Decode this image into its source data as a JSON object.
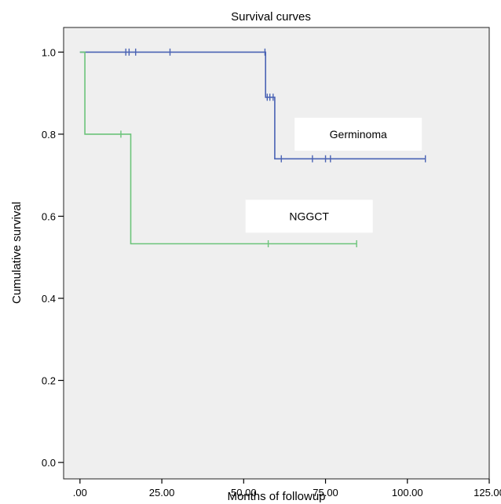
{
  "chart_data": {
    "type": "line",
    "title": "Survival curves",
    "xlabel": "Months of followup",
    "ylabel": "Cumulative survival",
    "xlim": [
      -5,
      125
    ],
    "ylim": [
      -0.04,
      1.06
    ],
    "x_ticks": [
      0,
      25,
      50,
      75,
      100,
      125
    ],
    "x_tick_labels": [
      ".00",
      "25.00",
      "50.00",
      "75.00",
      "100.00",
      "125.00"
    ],
    "y_ticks": [
      0,
      0.2,
      0.4,
      0.6,
      0.8,
      1.0
    ],
    "y_tick_labels": [
      "0.0",
      "0.2",
      "0.4",
      "0.6",
      "0.8",
      "1.0"
    ],
    "grid": false,
    "plot_background": "#efefef",
    "series": [
      {
        "name": "Germinoma",
        "color": "#4a63b4",
        "steps": [
          [
            0,
            1.0
          ],
          [
            56.7,
            1.0
          ],
          [
            56.7,
            0.89
          ],
          [
            59.5,
            0.89
          ],
          [
            59.5,
            0.74
          ],
          [
            105.5,
            0.74
          ]
        ],
        "censored": [
          [
            14,
            1.0
          ],
          [
            15,
            1.0
          ],
          [
            17,
            1.0
          ],
          [
            27.5,
            1.0
          ],
          [
            56.5,
            1.0
          ],
          [
            57.2,
            0.89
          ],
          [
            58,
            0.89
          ],
          [
            59,
            0.89
          ],
          [
            61.5,
            0.74
          ],
          [
            71,
            0.74
          ],
          [
            75,
            0.74
          ],
          [
            76.5,
            0.74
          ],
          [
            105.5,
            0.74
          ]
        ]
      },
      {
        "name": "NGGCT",
        "color": "#6cc47a",
        "steps": [
          [
            0,
            1.0
          ],
          [
            1.5,
            1.0
          ],
          [
            1.5,
            0.8
          ],
          [
            15.5,
            0.8
          ],
          [
            15.5,
            0.533
          ],
          [
            84.5,
            0.533
          ]
        ],
        "censored": [
          [
            12.5,
            0.8
          ],
          [
            57.5,
            0.533
          ],
          [
            84.5,
            0.533
          ]
        ]
      }
    ],
    "annotations": [
      {
        "text": "Germinoma",
        "x": 85,
        "y": 0.8
      },
      {
        "text": "NGGCT",
        "x": 70,
        "y": 0.6
      }
    ]
  }
}
